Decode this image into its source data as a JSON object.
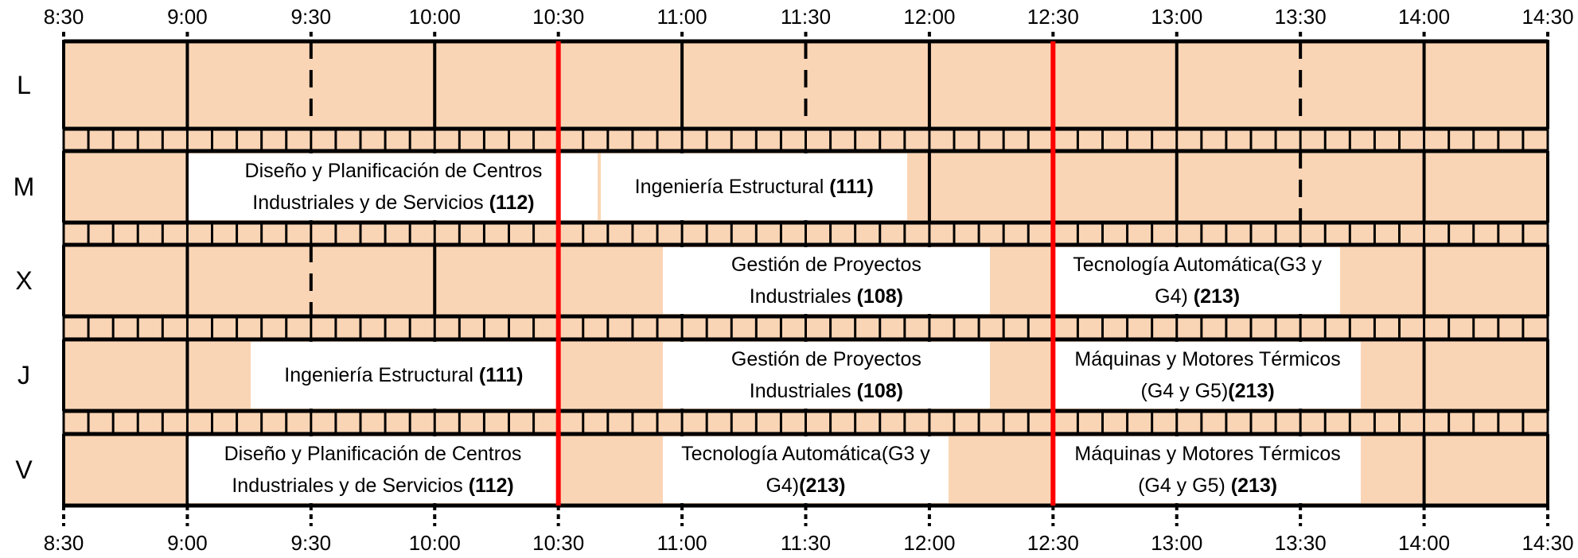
{
  "time_labels": [
    "8:30",
    "9:00",
    "9:30",
    "10:00",
    "10:30",
    "11:00",
    "11:30",
    "12:00",
    "12:30",
    "13:00",
    "13:30",
    "14:00",
    "14:30"
  ],
  "days": [
    "L",
    "M",
    "X",
    "J",
    "V"
  ],
  "colors": {
    "slot": "#fad5b5",
    "event": "#ffffff",
    "marker": "#ff0000",
    "line": "#000000"
  },
  "markers": [
    "10:30",
    "12:30"
  ],
  "events": [
    {
      "day": "M",
      "start": "9:00",
      "end": "10:40",
      "lines": [
        {
          "text": "Diseño y Planificación de Centros",
          "room": ""
        },
        {
          "text": "Industriales y de Servicios ",
          "room": "(112)"
        }
      ]
    },
    {
      "day": "M",
      "start": "10:40",
      "end": "11:55",
      "lines": [
        {
          "text": "Ingeniería Estructural ",
          "room": "(111)"
        }
      ]
    },
    {
      "day": "X",
      "start": "10:55",
      "end": "12:15",
      "lines": [
        {
          "text": "Gestión de Proyectos",
          "room": ""
        },
        {
          "text": "Industriales ",
          "room": "(108)"
        }
      ]
    },
    {
      "day": "X",
      "start": "12:30",
      "end": "13:40",
      "lines": [
        {
          "text": "Tecnología Automática(G3 y",
          "room": ""
        },
        {
          "text": "G4) ",
          "room": "(213)"
        }
      ]
    },
    {
      "day": "J",
      "start": "9:15",
      "end": "10:30",
      "lines": [
        {
          "text": "Ingeniería Estructural ",
          "room": "(111)"
        }
      ]
    },
    {
      "day": "J",
      "start": "10:55",
      "end": "12:15",
      "lines": [
        {
          "text": "Gestión de Proyectos",
          "room": ""
        },
        {
          "text": "Industriales ",
          "room": "(108)"
        }
      ]
    },
    {
      "day": "J",
      "start": "12:30",
      "end": "13:45",
      "lines": [
        {
          "text": "Máquinas y Motores Térmicos",
          "room": ""
        },
        {
          "text": "(G4 y G5)",
          "room": "(213)"
        }
      ]
    },
    {
      "day": "V",
      "start": "9:00",
      "end": "10:30",
      "lines": [
        {
          "text": "Diseño y Planificación de Centros",
          "room": ""
        },
        {
          "text": "Industriales y de Servicios ",
          "room": "(112)"
        }
      ]
    },
    {
      "day": "V",
      "start": "10:55",
      "end": "12:05",
      "lines": [
        {
          "text": "Tecnología Automática(G3 y",
          "room": ""
        },
        {
          "text": "G4)",
          "room": "(213)"
        }
      ]
    },
    {
      "day": "V",
      "start": "12:30",
      "end": "13:45",
      "lines": [
        {
          "text": "Máquinas y Motores Térmicos",
          "room": ""
        },
        {
          "text": "(G4 y G5) ",
          "room": "(213)"
        }
      ]
    }
  ]
}
